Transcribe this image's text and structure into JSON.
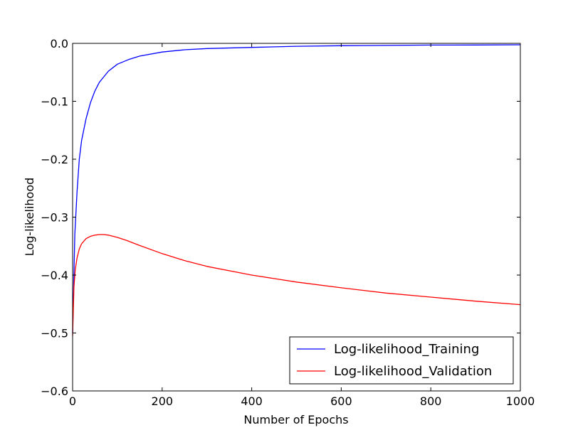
{
  "chart_data": {
    "type": "line",
    "title": "",
    "xlabel": "Number of Epochs",
    "ylabel": "Log-likelihood",
    "xlim": [
      0,
      1000
    ],
    "ylim": [
      -0.6,
      0.0
    ],
    "xticks": [
      0,
      200,
      400,
      600,
      800,
      1000
    ],
    "xtick_labels": [
      "0",
      "200",
      "400",
      "600",
      "800",
      "1000"
    ],
    "yticks": [
      0.0,
      -0.1,
      -0.2,
      -0.3,
      -0.4,
      -0.5,
      -0.6
    ],
    "ytick_labels": [
      "0.0",
      "−0.1",
      "−0.2",
      "−0.3",
      "−0.4",
      "−0.5",
      "−0.6"
    ],
    "grid": false,
    "legend_position": "lower-right",
    "series": [
      {
        "name": "Log-likelihood_Training",
        "color": "#0000ff",
        "x": [
          0,
          5,
          10,
          15,
          20,
          30,
          40,
          50,
          60,
          80,
          100,
          125,
          150,
          200,
          250,
          300,
          400,
          500,
          600,
          700,
          800,
          900,
          1000
        ],
        "y": [
          -0.5,
          -0.33,
          -0.255,
          -0.2,
          -0.168,
          -0.13,
          -0.102,
          -0.082,
          -0.067,
          -0.048,
          -0.036,
          -0.028,
          -0.022,
          -0.015,
          -0.011,
          -0.009,
          -0.007,
          -0.005,
          -0.004,
          -0.0035,
          -0.003,
          -0.0028,
          -0.0025
        ]
      },
      {
        "name": "Log-likelihood_Validation",
        "color": "#ff0000",
        "x": [
          0,
          3,
          6,
          10,
          15,
          20,
          30,
          40,
          50,
          60,
          70,
          80,
          100,
          120,
          150,
          200,
          250,
          300,
          400,
          500,
          600,
          700,
          800,
          900,
          1000
        ],
        "y": [
          -0.505,
          -0.42,
          -0.39,
          -0.37,
          -0.355,
          -0.346,
          -0.337,
          -0.333,
          -0.331,
          -0.33,
          -0.33,
          -0.331,
          -0.335,
          -0.34,
          -0.349,
          -0.363,
          -0.375,
          -0.385,
          -0.4,
          -0.412,
          -0.422,
          -0.431,
          -0.438,
          -0.445,
          -0.451
        ]
      }
    ]
  }
}
